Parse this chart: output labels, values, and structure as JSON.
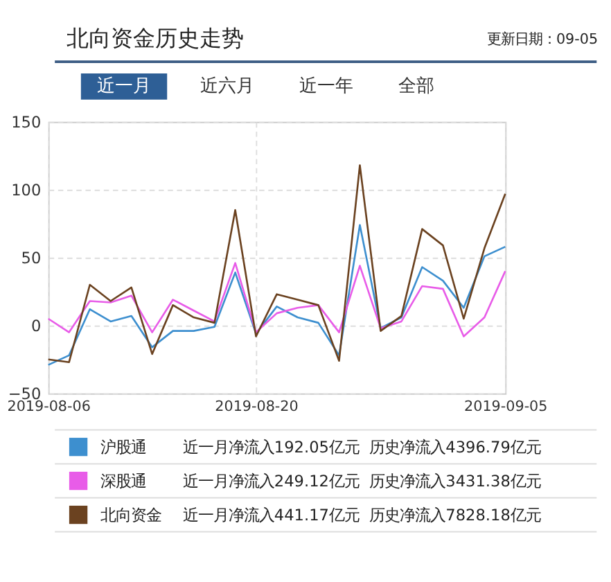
{
  "chart_data": {
    "type": "line",
    "title": "北向资金历史走势",
    "subtitle": "更新日期：09-05",
    "categories": [
      "2019-08-06",
      null,
      null,
      null,
      null,
      null,
      null,
      null,
      null,
      null,
      "2019-08-20",
      null,
      null,
      null,
      null,
      null,
      null,
      null,
      null,
      null,
      null,
      null,
      "2019-09-05"
    ],
    "series": [
      {
        "name": "沪股通",
        "color": "#3d8fcf",
        "values": [
          -29,
          -22,
          12,
          3,
          7,
          -16,
          -4,
          -4,
          -1,
          39,
          -6,
          14,
          6,
          2,
          -22,
          74,
          -2,
          6,
          43,
          33,
          13,
          51,
          58
        ]
      },
      {
        "name": "深股通",
        "color": "#e85ce8",
        "values": [
          5,
          -5,
          18,
          17,
          22,
          -5,
          19,
          11,
          3,
          46,
          -5,
          9,
          13,
          15,
          -5,
          44,
          -2,
          3,
          29,
          27,
          -8,
          6,
          40
        ]
      },
      {
        "name": "北向资金",
        "color": "#6b4220",
        "values": [
          -25,
          -27,
          30,
          18,
          28,
          -21,
          15,
          6,
          2,
          85,
          -8,
          23,
          19,
          15,
          -26,
          118,
          -4,
          7,
          71,
          59,
          5,
          57,
          97
        ]
      }
    ],
    "ylim": [
      -50,
      150
    ],
    "yticks": [
      -50,
      0,
      50,
      100,
      150
    ],
    "grid": true,
    "legend": "bottom",
    "marker": "none",
    "line_style": "solid",
    "annotations": [
      "近一月",
      "近六月",
      "近一年",
      "全部",
      "近一月净流入192.05亿元",
      "历史净流入4396.79亿元",
      "近一月净流入249.12亿元",
      "历史净流入3431.38亿元",
      "近一月净流入441.17亿元",
      "历史净流入7828.18亿元"
    ]
  }
}
